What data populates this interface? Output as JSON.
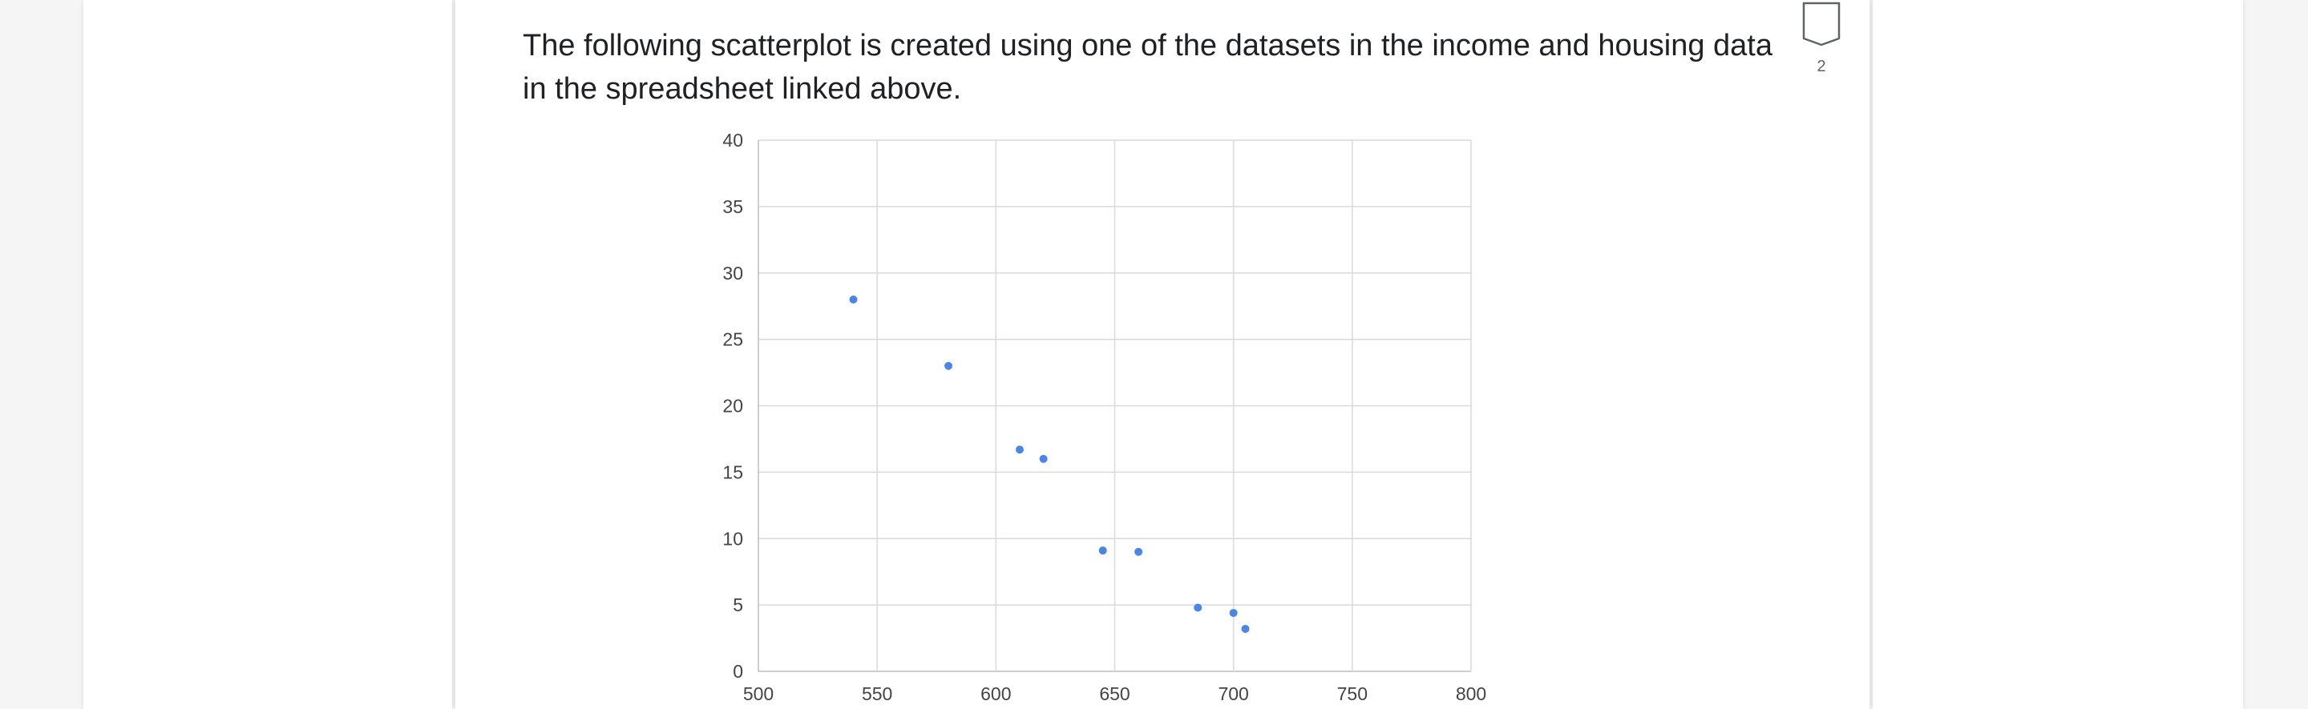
{
  "question": {
    "text": "The following scatterplot is created using one of the datasets in the income and housing data in the spreadsheet linked above."
  },
  "bookmark": {
    "icon": "bookmark-icon",
    "count": "2"
  },
  "colors": {
    "point": "#4a86e8",
    "grid": "#d9d9d9",
    "axis": "#bdbdbd"
  },
  "chart_data": {
    "type": "scatter",
    "title": "",
    "xlabel": "",
    "ylabel": "",
    "xlim": [
      500,
      800
    ],
    "ylim": [
      0,
      40
    ],
    "xticks": [
      "500",
      "550",
      "600",
      "650",
      "700",
      "750",
      "800"
    ],
    "yticks": [
      "0",
      "5",
      "10",
      "15",
      "20",
      "25",
      "30",
      "35",
      "40"
    ],
    "grid": true,
    "legend": "none",
    "series": [
      {
        "x": [
          540,
          580,
          610,
          620,
          645,
          660,
          685,
          700,
          705
        ],
        "y": [
          28,
          23,
          16.7,
          16,
          9.1,
          9,
          4.8,
          4.4,
          3.2
        ]
      }
    ]
  }
}
